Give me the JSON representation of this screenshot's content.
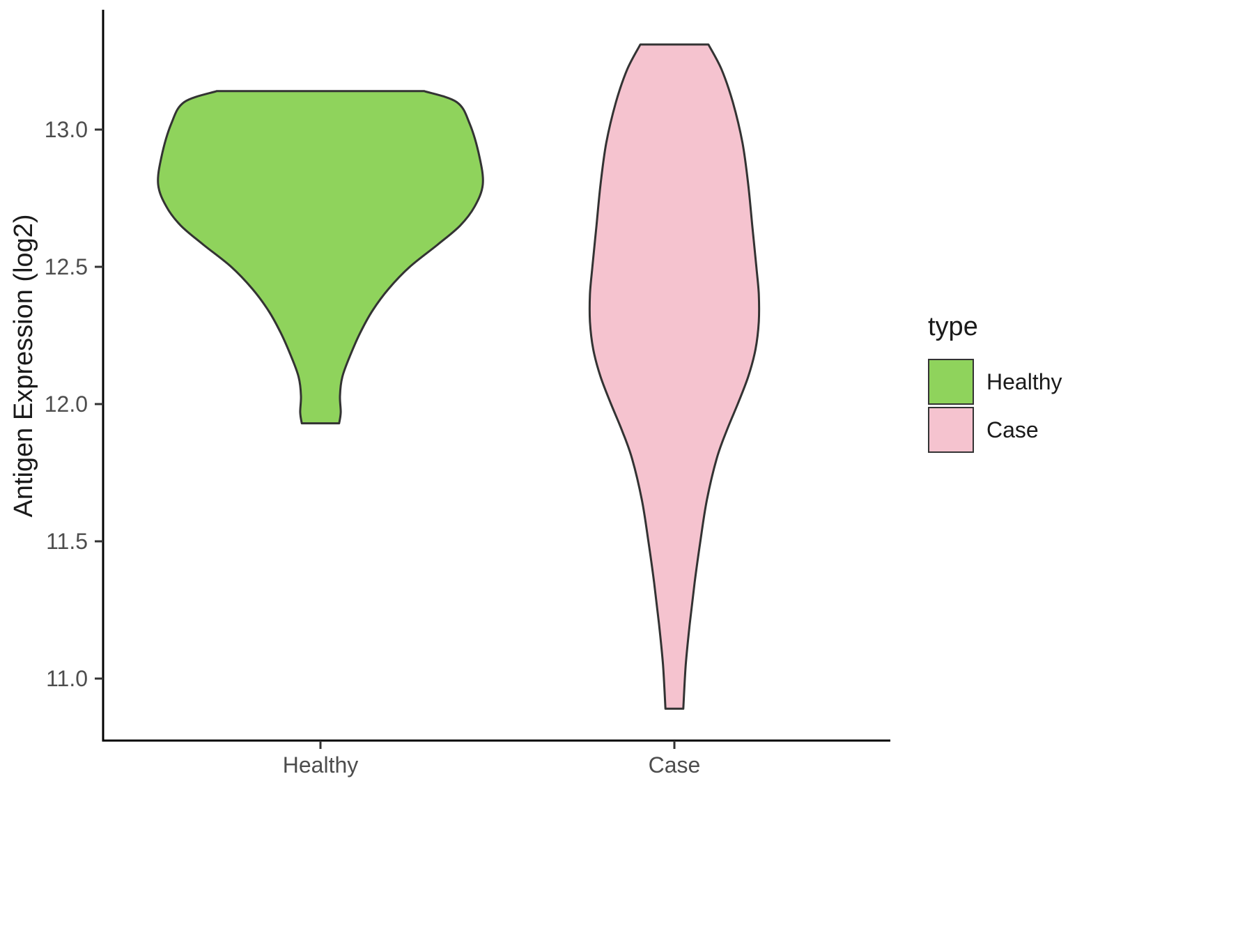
{
  "figure": {
    "background": "#ffffff"
  },
  "y_axis": {
    "label": "Antigen Expression (log2)",
    "ticks": [
      "13.0",
      "12.5",
      "12.0",
      "11.5",
      "11.0"
    ]
  },
  "x_axis": {
    "categories": [
      "Healthy",
      "Case"
    ]
  },
  "legend": {
    "title": "type",
    "entries": [
      {
        "label": "Healthy",
        "color": "#8fd35c"
      },
      {
        "label": "Case",
        "color": "#f5c3cf"
      }
    ]
  },
  "chart_data": {
    "type": "violin",
    "title": "",
    "xlabel": "",
    "ylabel": "Antigen Expression (log2)",
    "categories": [
      "Healthy",
      "Case"
    ],
    "y_ticks": [
      13.0,
      12.5,
      12.0,
      11.5,
      11.0
    ],
    "y_axis_range": [
      10.8,
      13.45
    ],
    "grid": false,
    "legend_title": "type",
    "legend_position": "right",
    "series": [
      {
        "name": "Healthy",
        "fill": "#8fd35c",
        "outline": "#333333",
        "y_min": 11.93,
        "y_max": 13.14,
        "flat_top": true,
        "flat_bottom": true,
        "density_profile": [
          [
            13.14,
            0.64
          ],
          [
            13.1,
            0.84
          ],
          [
            13.02,
            0.92
          ],
          [
            12.9,
            0.98
          ],
          [
            12.8,
            1.0
          ],
          [
            12.72,
            0.95
          ],
          [
            12.65,
            0.86
          ],
          [
            12.58,
            0.72
          ],
          [
            12.5,
            0.55
          ],
          [
            12.42,
            0.42
          ],
          [
            12.34,
            0.32
          ],
          [
            12.26,
            0.245
          ],
          [
            12.18,
            0.185
          ],
          [
            12.1,
            0.135
          ],
          [
            12.03,
            0.12
          ],
          [
            11.97,
            0.125
          ],
          [
            11.93,
            0.115
          ]
        ]
      },
      {
        "name": "Case",
        "fill": "#f5c3cf",
        "outline": "#333333",
        "y_min": 10.89,
        "y_max": 13.31,
        "flat_top": true,
        "flat_bottom": true,
        "density_profile": [
          [
            13.31,
            0.21
          ],
          [
            13.22,
            0.29
          ],
          [
            13.1,
            0.36
          ],
          [
            12.95,
            0.42
          ],
          [
            12.8,
            0.455
          ],
          [
            12.65,
            0.48
          ],
          [
            12.5,
            0.505
          ],
          [
            12.4,
            0.52
          ],
          [
            12.3,
            0.52
          ],
          [
            12.2,
            0.5
          ],
          [
            12.1,
            0.455
          ],
          [
            12.0,
            0.39
          ],
          [
            11.9,
            0.32
          ],
          [
            11.8,
            0.26
          ],
          [
            11.65,
            0.2
          ],
          [
            11.5,
            0.16
          ],
          [
            11.35,
            0.125
          ],
          [
            11.2,
            0.095
          ],
          [
            11.05,
            0.07
          ],
          [
            10.89,
            0.055
          ]
        ]
      }
    ]
  }
}
